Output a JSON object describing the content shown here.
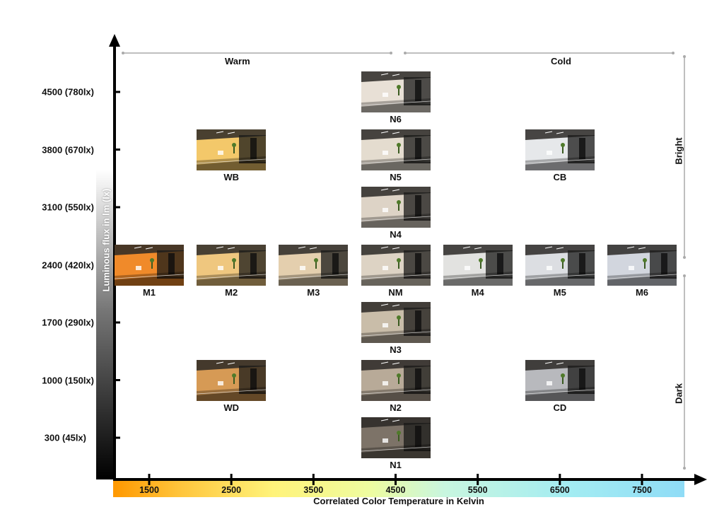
{
  "groups": {
    "warm": "Warm",
    "cold": "Cold",
    "bright": "Bright",
    "dark": "Dark"
  },
  "y_axis_title": "Luminous flux in lm (lx)",
  "x_axis_title": "Correlated Color Temperature in Kelvin",
  "y_ticks": [
    "4500 (780lx)",
    "3800 (670lx)",
    "3100 (550lx)",
    "2400 (420lx)",
    "1700 (290lx)",
    "1000 (150lx)",
    "300 (45lx)"
  ],
  "x_ticks": [
    "1500",
    "2500",
    "3500",
    "4500",
    "5500",
    "6500",
    "7500"
  ],
  "conditions": [
    {
      "label": "N6",
      "kelvin": 4500,
      "lumen": 4500,
      "tint": "#e8e0d6"
    },
    {
      "label": "WB",
      "kelvin": 2500,
      "lumen": 3800,
      "tint": "#f3c86a"
    },
    {
      "label": "N5",
      "kelvin": 4500,
      "lumen": 3800,
      "tint": "#e4dccf"
    },
    {
      "label": "CB",
      "kelvin": 6500,
      "lumen": 3800,
      "tint": "#e6e8ea"
    },
    {
      "label": "N4",
      "kelvin": 4500,
      "lumen": 3100,
      "tint": "#ddd3c6"
    },
    {
      "label": "M1",
      "kelvin": 1500,
      "lumen": 2400,
      "tint": "#f08a2a"
    },
    {
      "label": "M2",
      "kelvin": 2500,
      "lumen": 2400,
      "tint": "#efc77f"
    },
    {
      "label": "M3",
      "kelvin": 3500,
      "lumen": 2400,
      "tint": "#e4cfae"
    },
    {
      "label": "NM",
      "kelvin": 4500,
      "lumen": 2400,
      "tint": "#ddd3c4"
    },
    {
      "label": "M4",
      "kelvin": 5500,
      "lumen": 2400,
      "tint": "#e2e2e0"
    },
    {
      "label": "M5",
      "kelvin": 6500,
      "lumen": 2400,
      "tint": "#dcdee2"
    },
    {
      "label": "M6",
      "kelvin": 7500,
      "lumen": 2400,
      "tint": "#d2d6de"
    },
    {
      "label": "N3",
      "kelvin": 4500,
      "lumen": 1700,
      "tint": "#c9bda9"
    },
    {
      "label": "WD",
      "kelvin": 2500,
      "lumen": 1000,
      "tint": "#d69a55"
    },
    {
      "label": "N2",
      "kelvin": 4500,
      "lumen": 1000,
      "tint": "#b8aa98"
    },
    {
      "label": "CD",
      "kelvin": 6500,
      "lumen": 1000,
      "tint": "#b8b9bd"
    },
    {
      "label": "N1",
      "kelvin": 4500,
      "lumen": 300,
      "tint": "#7d7368"
    }
  ]
}
